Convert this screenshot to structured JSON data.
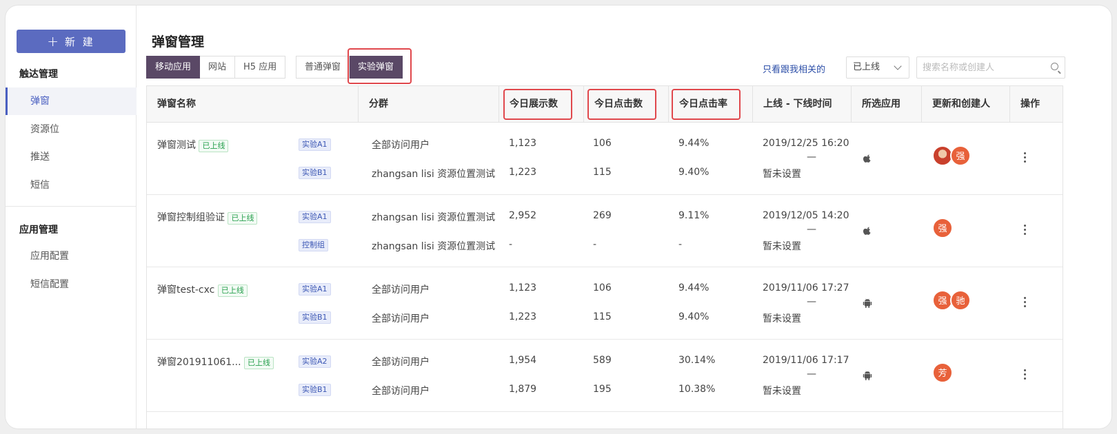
{
  "sidebar": {
    "new_button": "新 建",
    "group1_title": "触达管理",
    "group1_items": [
      "弹窗",
      "资源位",
      "推送",
      "短信"
    ],
    "group2_title": "应用管理",
    "group2_items": [
      "应用配置",
      "短信配置"
    ]
  },
  "header": {
    "title": "弹窗管理",
    "platform_tabs": [
      "移动应用",
      "网站",
      "H5 应用"
    ],
    "type_tabs": [
      "普通弹窗",
      "实验弹窗"
    ],
    "related_link": "只看跟我相关的",
    "status_value": "已上线",
    "search_placeholder": "搜索名称或创建人"
  },
  "table": {
    "columns": [
      "弹窗名称",
      "分群",
      "今日展示数",
      "今日点击数",
      "今日点击率",
      "上线 - 下线时间",
      "所选应用",
      "更新和创建人",
      "操作"
    ],
    "rows": [
      {
        "name": "弹窗测试",
        "status": "已上线",
        "groups": [
          "实验A1",
          "实验B1"
        ],
        "segments": [
          "全部访问用户",
          "zhangsan lisi 资源位置测试"
        ],
        "impressions": [
          "1,123",
          "1,223"
        ],
        "clicks": [
          "106",
          "115"
        ],
        "ctr": [
          "9.44%",
          "9.40%"
        ],
        "start": "2019/12/25 16:20",
        "dash": "—",
        "end": "暂未设置",
        "platform": "apple-icon",
        "avatars": [
          "",
          "强"
        ]
      },
      {
        "name": "弹窗控制组验证",
        "status": "已上线",
        "groups": [
          "实验A1",
          "控制组"
        ],
        "segments": [
          "zhangsan lisi 资源位置测试",
          "zhangsan lisi 资源位置测试"
        ],
        "impressions": [
          "2,952",
          "-"
        ],
        "clicks": [
          "269",
          "-"
        ],
        "ctr": [
          "9.11%",
          "-"
        ],
        "start": "2019/12/05 14:20",
        "dash": "—",
        "end": "暂未设置",
        "platform": "apple-icon",
        "avatars": [
          "强"
        ]
      },
      {
        "name": "弹窗test-cxc",
        "status": "已上线",
        "groups": [
          "实验A1",
          "实验B1"
        ],
        "segments": [
          "全部访问用户",
          "全部访问用户"
        ],
        "impressions": [
          "1,123",
          "1,223"
        ],
        "clicks": [
          "106",
          "115"
        ],
        "ctr": [
          "9.44%",
          "9.40%"
        ],
        "start": "2019/11/06 17:27",
        "dash": "—",
        "end": "暂未设置",
        "platform": "android-icon",
        "avatars": [
          "强",
          "驰"
        ]
      },
      {
        "name": "弹窗201911061...",
        "status": "已上线",
        "groups": [
          "实验A2",
          "实验B1"
        ],
        "segments": [
          "全部访问用户",
          "全部访问用户"
        ],
        "impressions": [
          "1,954",
          "1,879"
        ],
        "clicks": [
          "589",
          "195"
        ],
        "ctr": [
          "30.14%",
          "10.38%"
        ],
        "start": "2019/11/06 17:17",
        "dash": "—",
        "end": "暂未设置",
        "platform": "android-icon",
        "avatars": [
          "芳"
        ]
      }
    ]
  },
  "colors": {
    "accent": "#5b6bc0",
    "active_tab": "#5a4866",
    "highlight": "#e0474c",
    "online": "#27a04d",
    "avatar": "#e8613a"
  }
}
